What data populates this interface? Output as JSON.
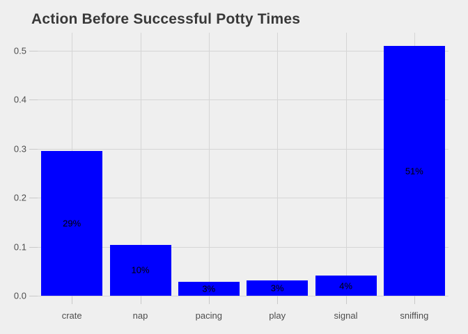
{
  "chart_data": {
    "type": "bar",
    "title": "Action Before Successful Potty Times",
    "categories": [
      "crate",
      "nap",
      "pacing",
      "play",
      "signal",
      "sniffing"
    ],
    "values": [
      0.295,
      0.104,
      0.028,
      0.031,
      0.041,
      0.51
    ],
    "bar_labels": [
      "29%",
      "10%",
      "3%",
      "3%",
      "4%",
      "51%"
    ],
    "xlabel": "",
    "ylabel": "",
    "ylim": [
      0,
      0.537
    ],
    "yticks": [
      0,
      0.1,
      0.2,
      0.3,
      0.4,
      0.5
    ],
    "ytick_labels": [
      "0.0",
      "0.1",
      "0.2",
      "0.3",
      "0.4",
      "0.5"
    ],
    "grid": true,
    "legend": false,
    "colors": {
      "bar": "#0000ff",
      "bar_label": "#000000",
      "background": "#efefef",
      "gridline": "#d5d5d5",
      "tick": "#c9c9c9",
      "axis_text": "#4d4d4d",
      "title_text": "#383838"
    }
  }
}
